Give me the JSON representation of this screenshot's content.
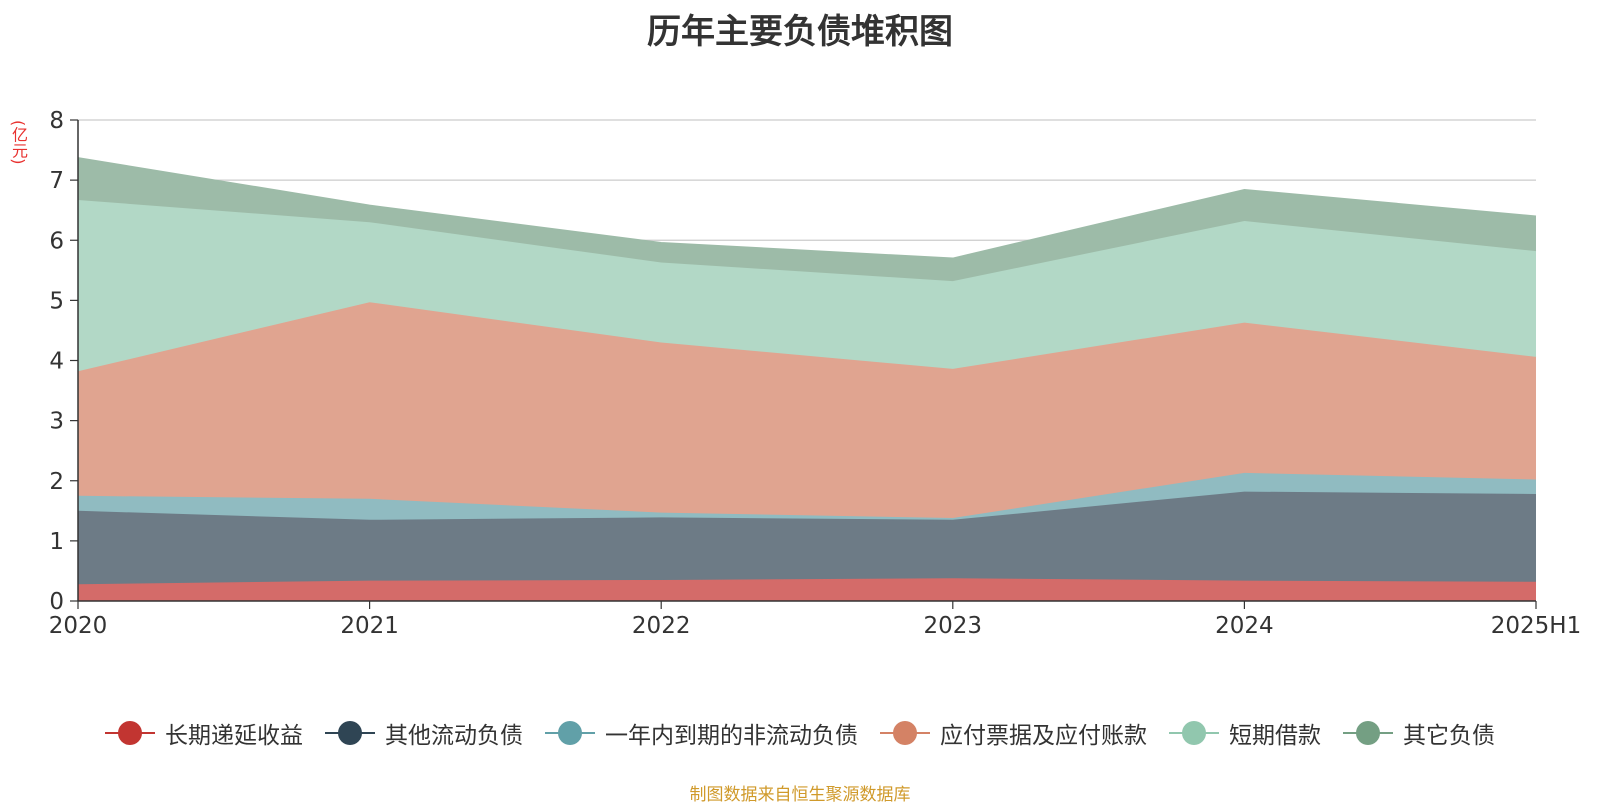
{
  "title": "历年主要负债堆积图",
  "unit": "(亿元)",
  "source": "制图数据来自恒生聚源数据库",
  "chart_data": {
    "type": "area",
    "stacked": true,
    "categories": [
      "2020",
      "2021",
      "2022",
      "2023",
      "2024",
      "2025H1"
    ],
    "ylim": [
      0,
      8
    ],
    "yticks": [
      "0",
      "1",
      "2",
      "3",
      "4",
      "5",
      "6",
      "7",
      "8"
    ],
    "grid": true,
    "legend_position": "bottom",
    "series": [
      {
        "name": "长期递延收益",
        "color": "#c23531",
        "fill": "#d46b69",
        "values": [
          0.28,
          0.34,
          0.35,
          0.38,
          0.34,
          0.32
        ]
      },
      {
        "name": "其他流动负债",
        "color": "#2f4554",
        "fill": "#6d7b86",
        "values": [
          1.22,
          1.01,
          1.04,
          0.97,
          1.48,
          1.46
        ]
      },
      {
        "name": "一年内到期的非流动负债",
        "color": "#61a0a8",
        "fill": "#90bbc1",
        "values": [
          0.25,
          0.35,
          0.08,
          0.03,
          0.31,
          0.24
        ]
      },
      {
        "name": "应付票据及应付账款",
        "color": "#d48265",
        "fill": "#e0a490",
        "values": [
          2.07,
          3.27,
          2.83,
          2.48,
          2.5,
          2.04
        ]
      },
      {
        "name": "短期借款",
        "color": "#91c7ae",
        "fill": "#b2d8c6",
        "values": [
          2.85,
          1.33,
          1.33,
          1.46,
          1.69,
          1.76
        ]
      },
      {
        "name": "其它负债",
        "color": "#749f83",
        "fill": "#9dbba8",
        "values": [
          0.7,
          0.28,
          0.33,
          0.38,
          0.52,
          0.58
        ]
      }
    ]
  }
}
